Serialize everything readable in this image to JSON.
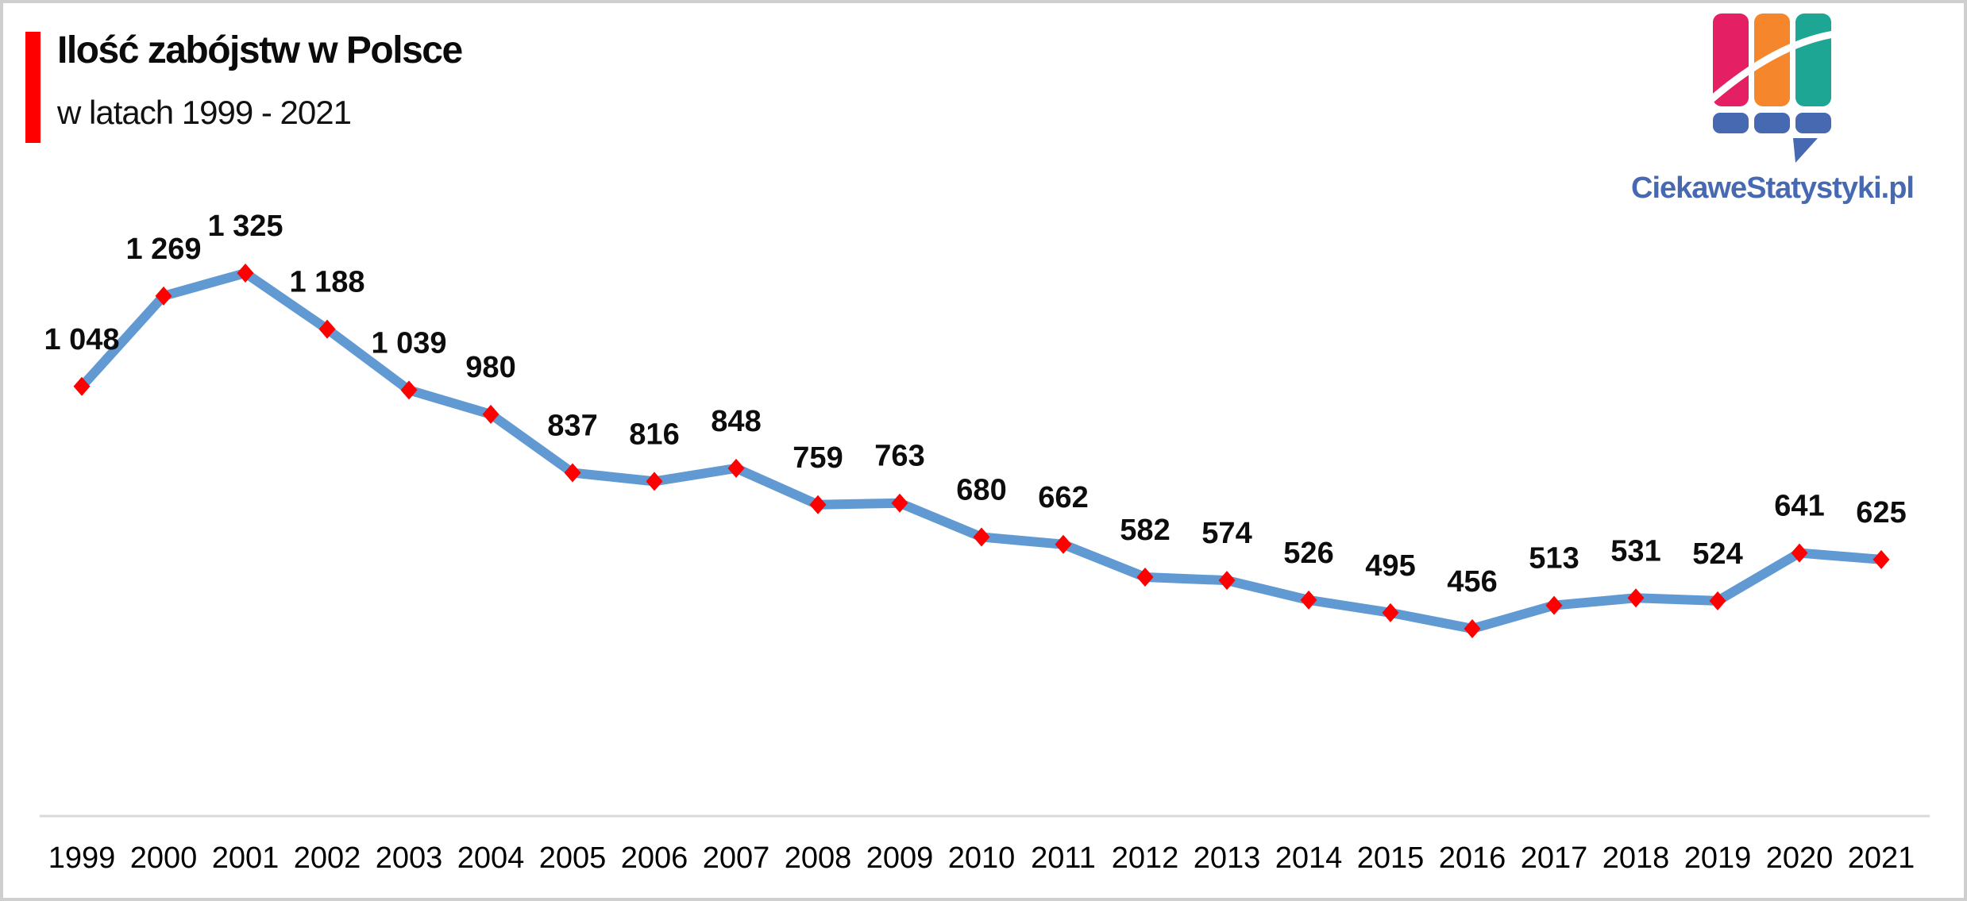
{
  "page": {
    "background": "#FFFFFF",
    "border_color": "#CFCFCF"
  },
  "header": {
    "title": "Ilość zabójstw w Polsce",
    "subtitle": "w latach 1999 - 2021",
    "accent_color": "#FF0000"
  },
  "logo": {
    "text": "CiekaweStatystyki.pl",
    "colors": {
      "pink": "#E41F63",
      "orange": "#F6862B",
      "teal": "#1EA695",
      "blue": "#4769B2"
    }
  },
  "chart_data": {
    "type": "line",
    "title": "Ilość zabójstw w Polsce",
    "subtitle": "w latach 1999 - 2021",
    "xlabel": "",
    "ylabel": "",
    "categories": [
      "1999",
      "2000",
      "2001",
      "2002",
      "2003",
      "2004",
      "2005",
      "2006",
      "2007",
      "2008",
      "2009",
      "2010",
      "2011",
      "2012",
      "2013",
      "2014",
      "2015",
      "2016",
      "2017",
      "2018",
      "2019",
      "2020",
      "2021"
    ],
    "values": [
      1048,
      1269,
      1325,
      1188,
      1039,
      980,
      837,
      816,
      848,
      759,
      763,
      680,
      662,
      582,
      574,
      526,
      495,
      456,
      513,
      531,
      524,
      641,
      625
    ],
    "labels": [
      "1 048",
      "1 269",
      "1 325",
      "1 188",
      "1 039",
      "980",
      "837",
      "816",
      "848",
      "759",
      "763",
      "680",
      "662",
      "582",
      "574",
      "526",
      "495",
      "456",
      "513",
      "531",
      "524",
      "641",
      "625"
    ],
    "series_name": "Ilość zabójstw",
    "series_color": "#6199D3",
    "marker_color": "#FF0000",
    "marker_shape": "diamond",
    "label_color": "#0D0D0D",
    "axis_color": "#D9D9D9",
    "ylim": [
      0,
      1400
    ],
    "grid": false,
    "legend": false,
    "x_axis_line": true
  }
}
